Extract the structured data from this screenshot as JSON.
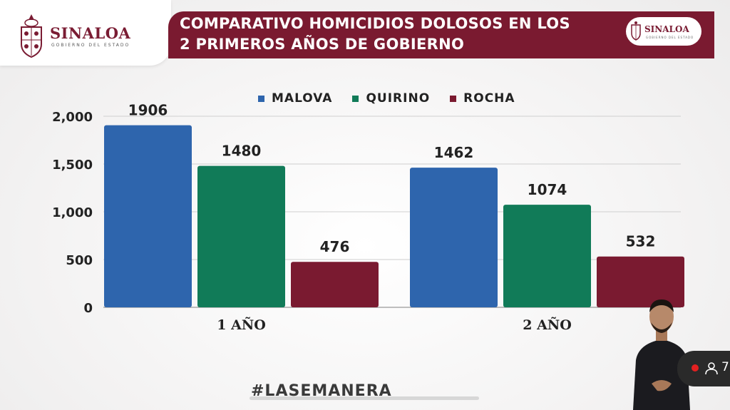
{
  "header": {
    "logo_text": "SINALOA",
    "logo_subtext": "GOBIERNO DEL ESTADO",
    "title_line1": "COMPARATIVO HOMICIDIOS DOLOSOS EN LOS",
    "title_line2": "2 PRIMEROS AÑOS DE GOBIERNO",
    "right_logo_text": "SINALOA",
    "right_logo_subtext": "GOBIERNO DEL ESTADO"
  },
  "colors": {
    "brand": "#7a1a30",
    "malova": "#2e65ad",
    "quirino": "#117b58",
    "rocha": "#7a1a30"
  },
  "chart_data": {
    "type": "bar",
    "title": "COMPARATIVO HOMICIDIOS DOLOSOS EN LOS 2 PRIMEROS AÑOS DE GOBIERNO",
    "categories": [
      "1 AÑO",
      "2 AÑO"
    ],
    "series": [
      {
        "name": "MALOVA",
        "values": [
          1906,
          1462
        ],
        "color": "#2e65ad"
      },
      {
        "name": "QUIRINO",
        "values": [
          1480,
          1074
        ],
        "color": "#117b58"
      },
      {
        "name": "ROCHA",
        "values": [
          476,
          532
        ],
        "color": "#7a1a30"
      }
    ],
    "yticks": [
      "0",
      "500",
      "1,000",
      "1,500",
      "2,000"
    ],
    "ytick_values": [
      0,
      500,
      1000,
      1500,
      2000
    ],
    "ylim": [
      0,
      2000
    ],
    "grid": true,
    "legend_position": "top"
  },
  "overlay": {
    "watermark": "#LASEMANERA",
    "viewer_count": "7",
    "icon": "user-icon"
  }
}
